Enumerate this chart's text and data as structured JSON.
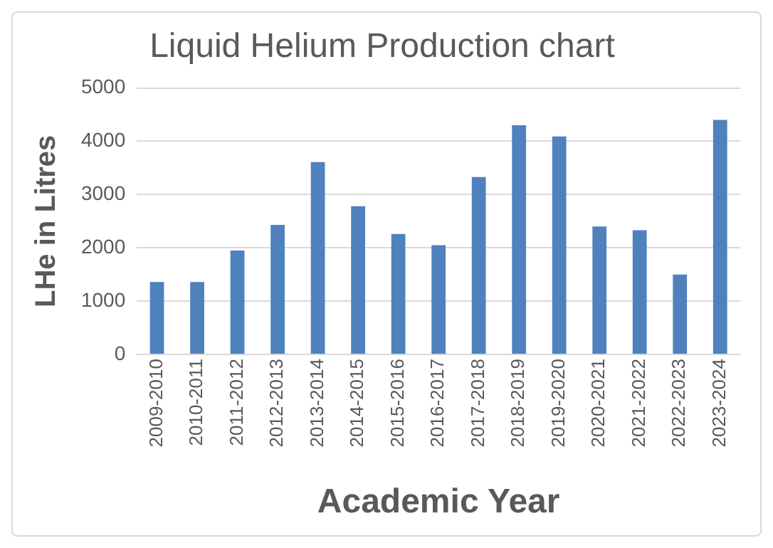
{
  "chart_data": {
    "type": "bar",
    "title": "Liquid Helium Production chart",
    "xlabel": "Academic Year",
    "ylabel": "LHe in Litres",
    "categories": [
      "2009-2010",
      "2010-2011",
      "2011-2012",
      "2012-2013",
      "2013-2014",
      "2014-2015",
      "2015-2016",
      "2016-2017",
      "2017-2018",
      "2018-2019",
      "2019-2020",
      "2020-2021",
      "2021-2022",
      "2022-2023",
      "2023-2024"
    ],
    "values": [
      1360,
      1360,
      1950,
      2430,
      3610,
      2780,
      2260,
      2050,
      3330,
      4300,
      4090,
      2400,
      2330,
      1500,
      4400
    ],
    "color": "#4f81bd",
    "ylim": [
      0,
      5000
    ],
    "yticks": [
      0,
      1000,
      2000,
      3000,
      4000,
      5000
    ],
    "grid": "y",
    "legend": false
  }
}
